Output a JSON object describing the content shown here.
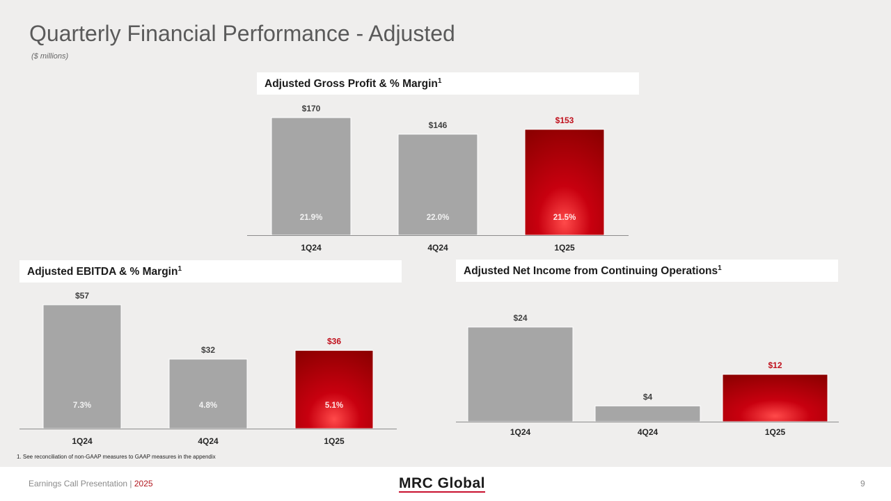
{
  "page": {
    "title": "Quarterly Financial Performance - Adjusted",
    "subtitle": "($ millions)",
    "footnote": "1.   See reconciliation of non-GAAP measures to GAAP measures in the appendix",
    "footer": {
      "left_text": "Earnings Call Presentation | ",
      "year": "2025",
      "logo": "MRC Global",
      "page_number": "9"
    }
  },
  "colors": {
    "bar_gray": "#a6a6a6",
    "highlight_red": "#c8000f",
    "highlight_dark": "#8b0000",
    "value_red": "#c0101c"
  },
  "chart_data": [
    {
      "id": "gross-profit",
      "type": "bar",
      "title": "Adjusted Gross Profit & % Margin",
      "title_sup": "1",
      "categories": [
        "1Q24",
        "4Q24",
        "1Q25"
      ],
      "values": [
        170,
        146,
        153
      ],
      "value_labels": [
        "$170",
        "$146",
        "$153"
      ],
      "margin_labels": [
        "21.9%",
        "22.0%",
        "21.5%"
      ],
      "highlight_index": 2,
      "ylim": [
        0,
        170
      ]
    },
    {
      "id": "ebitda",
      "type": "bar",
      "title": "Adjusted EBITDA & % Margin",
      "title_sup": "1",
      "categories": [
        "1Q24",
        "4Q24",
        "1Q25"
      ],
      "values": [
        57,
        32,
        36
      ],
      "value_labels": [
        "$57",
        "$32",
        "$36"
      ],
      "margin_labels": [
        "7.3%",
        "4.8%",
        "5.1%"
      ],
      "highlight_index": 2,
      "ylim": [
        0,
        57
      ]
    },
    {
      "id": "net-income",
      "type": "bar",
      "title": "Adjusted Net Income from Continuing Operations",
      "title_sup": "1",
      "categories": [
        "1Q24",
        "4Q24",
        "1Q25"
      ],
      "values": [
        24,
        4,
        12
      ],
      "value_labels": [
        "$24",
        "$4",
        "$12"
      ],
      "margin_labels": [],
      "highlight_index": 2,
      "ylim": [
        0,
        24
      ]
    }
  ]
}
